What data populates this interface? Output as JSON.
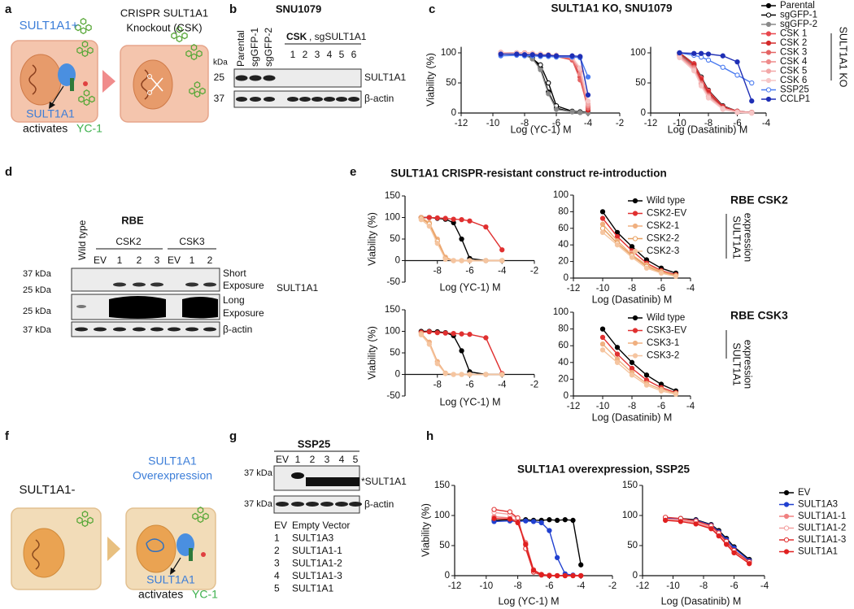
{
  "panel_labels": [
    "a",
    "b",
    "c",
    "d",
    "e",
    "f",
    "g",
    "h"
  ],
  "diagram_a": {
    "label_left": "SULT1A1+",
    "label_right": [
      "CRISPR SULT1A1",
      "Knockout (CSK)"
    ],
    "caption": [
      "SULT1A1",
      "activates",
      "YC-1"
    ]
  },
  "blot_b": {
    "title": "SNU1079",
    "lanes": [
      "Parental",
      "sgGFP-1",
      "sgGFP-2"
    ],
    "group": [
      "CSK",
      ", sgSULT1A1"
    ],
    "group_lanes": [
      "1",
      "2",
      "3",
      "4",
      "5",
      "6"
    ],
    "kda": "kDa",
    "markers": [
      "25",
      "37"
    ],
    "bands": [
      "SULT1A1",
      "β-actin"
    ]
  },
  "blot_d": {
    "title": "RBE",
    "control": "Wild type",
    "groups": [
      "CSK2",
      "CSK3"
    ],
    "lanes": [
      "EV",
      "1",
      "2",
      "3",
      "EV",
      "1",
      "2"
    ],
    "markers": [
      "37 kDa",
      "25 kDa",
      "25 kDa",
      "37 kDa"
    ],
    "exposures": [
      "Short",
      "Exposure",
      "Long",
      "Exposure"
    ],
    "protein": "SULT1A1",
    "loading": "β-actin"
  },
  "diagram_f": {
    "label_left": "SULT1A1-",
    "label_right": [
      "SULT1A1",
      "Overexpression"
    ],
    "caption": [
      "SULT1A1",
      "activates",
      "YC-1"
    ]
  },
  "blot_g": {
    "title": "SSP25",
    "lanes": [
      "EV",
      "1",
      "2",
      "3",
      "4",
      "5"
    ],
    "markers": [
      "37 kDa",
      "37 kDa"
    ],
    "bands": [
      "*SULT1A1",
      "β-actin"
    ],
    "key": [
      [
        "EV",
        "Empty Vector"
      ],
      [
        "1",
        "SULT1A3"
      ],
      [
        "2",
        "SULT1A1-1"
      ],
      [
        "3",
        "SULT1A1-2"
      ],
      [
        "4",
        "SULT1A1-3"
      ],
      [
        "5",
        "SULT1A1"
      ]
    ]
  },
  "chart_data": [
    {
      "type": "line",
      "title": "SULT1A1 KO, SNU1079",
      "x_label": "Log (YC-1) M",
      "y_label": "Viability (%)",
      "xlim": [
        -12,
        -2
      ],
      "xticks": [
        -12,
        -10,
        -8,
        -6,
        -4,
        -2
      ],
      "ylim": [
        0,
        110
      ],
      "yticks": [
        0,
        50,
        100
      ],
      "x": [
        -9.5,
        -8.5,
        -8,
        -7.5,
        -7,
        -6.5,
        -6,
        -5,
        -4.5,
        -4
      ],
      "series": [
        {
          "color": "#000000",
          "values": [
            100,
            100,
            98,
            92,
            75,
            35,
            8,
            2,
            1,
            1
          ]
        },
        {
          "color": "#000000",
          "marker": "open",
          "values": [
            100,
            99,
            97,
            90,
            80,
            50,
            12,
            3,
            2,
            1
          ]
        },
        {
          "color": "#8a8a8a",
          "values": [
            98,
            98,
            96,
            90,
            72,
            32,
            6,
            2,
            1,
            0
          ]
        },
        {
          "color": "#e8474d",
          "values": [
            100,
            100,
            100,
            99,
            98,
            97,
            96,
            92,
            70,
            10
          ]
        },
        {
          "color": "#d42a2a",
          "values": [
            98,
            99,
            98,
            98,
            97,
            96,
            95,
            90,
            60,
            5
          ]
        },
        {
          "color": "#e46464",
          "values": [
            100,
            98,
            99,
            97,
            96,
            95,
            94,
            88,
            55,
            8
          ]
        },
        {
          "color": "#ee8b8b",
          "values": [
            99,
            100,
            98,
            98,
            97,
            96,
            95,
            91,
            65,
            12
          ]
        },
        {
          "color": "#f2a8a8",
          "values": [
            101,
            99,
            100,
            98,
            97,
            97,
            95,
            92,
            72,
            15
          ]
        },
        {
          "color": "#f7c6c6",
          "values": [
            100,
            100,
            99,
            99,
            98,
            97,
            96,
            93,
            75,
            20
          ]
        },
        {
          "color": "#4a7bf0",
          "values": [
            95,
            96,
            95,
            95,
            94,
            94,
            93,
            93,
            92,
            60
          ]
        },
        {
          "color": "#1f2fb5",
          "values": [
            98,
            98,
            97,
            97,
            96,
            96,
            95,
            95,
            94,
            30
          ]
        }
      ]
    },
    {
      "type": "line",
      "x_label": "Log (Dasatinib) M",
      "xlim": [
        -12,
        -4
      ],
      "xticks": [
        -12,
        -10,
        -8,
        -6,
        -4
      ],
      "ylim": [
        0,
        110
      ],
      "yticks": [
        0,
        50,
        100
      ],
      "annotations": [
        "SULT1A1 KO"
      ],
      "x": [
        -10,
        -9,
        -8.5,
        -8,
        -7,
        -6,
        -5
      ],
      "series": [
        {
          "name": "Parental",
          "color": "#000000",
          "values": [
            98,
            80,
            55,
            35,
            10,
            2,
            1
          ]
        },
        {
          "name": "sgGFP-1",
          "color": "#000000",
          "marker": "open",
          "values": [
            100,
            82,
            60,
            38,
            12,
            3,
            1
          ]
        },
        {
          "name": "sgGFP-2",
          "color": "#8a8a8a",
          "values": [
            97,
            78,
            52,
            33,
            9,
            2,
            1
          ]
        },
        {
          "name": "CSK 1",
          "color": "#e8474d",
          "values": [
            99,
            82,
            58,
            37,
            11,
            3,
            1
          ]
        },
        {
          "name": "CSK 2",
          "color": "#d42a2a",
          "values": [
            100,
            80,
            55,
            34,
            10,
            2,
            0
          ]
        },
        {
          "name": "CSK 3",
          "color": "#e46464",
          "values": [
            96,
            76,
            50,
            30,
            8,
            2,
            1
          ]
        },
        {
          "name": "CSK 4",
          "color": "#ee8b8b",
          "values": [
            95,
            74,
            48,
            28,
            7,
            1,
            0
          ]
        },
        {
          "name": "CSK 5",
          "color": "#f2a8a8",
          "values": [
            93,
            72,
            46,
            27,
            8,
            2,
            1
          ]
        },
        {
          "name": "CSK 6",
          "color": "#f7c6c6",
          "values": [
            92,
            70,
            45,
            25,
            6,
            1,
            0
          ]
        },
        {
          "name": "SSP25",
          "color": "#4a7bf0",
          "marker": "open",
          "values": [
            100,
            96,
            93,
            88,
            76,
            63,
            50
          ]
        },
        {
          "name": "CCLP1",
          "color": "#1f2fb5",
          "values": [
            100,
            99,
            99,
            98,
            95,
            85,
            20
          ]
        }
      ]
    },
    {
      "type": "line",
      "title": "SULT1A1 CRISPR-resistant construct re-introduction",
      "x_label": "Log (YC-1) M",
      "y_label": "Viability (%)",
      "xlim": [
        -10,
        -2
      ],
      "xticks": [
        -8,
        -6,
        -4,
        -2
      ],
      "ylim": [
        -50,
        150
      ],
      "yticks": [
        -50,
        0,
        50,
        100,
        150
      ],
      "x": [
        -9,
        -8.5,
        -8,
        -7.5,
        -7,
        -6.5,
        -6,
        -5,
        -4
      ],
      "series": [
        {
          "color": "#000000",
          "values": [
            100,
            100,
            98,
            96,
            88,
            50,
            5,
            0,
            0
          ]
        },
        {
          "color": "#e03030",
          "values": [
            100,
            100,
            99,
            98,
            96,
            95,
            92,
            78,
            25
          ]
        },
        {
          "color": "#f0b080",
          "values": [
            100,
            88,
            50,
            8,
            0,
            0,
            0,
            0,
            0
          ]
        },
        {
          "color": "#e8a060",
          "marker": "open",
          "values": [
            98,
            85,
            45,
            5,
            0,
            0,
            0,
            0,
            0
          ]
        },
        {
          "color": "#f5c5a0",
          "values": [
            95,
            80,
            40,
            3,
            0,
            0,
            0,
            0,
            0
          ]
        }
      ]
    },
    {
      "type": "line",
      "x_label": "Log (Dasatinib) M",
      "xlim": [
        -12,
        -4
      ],
      "xticks": [
        -12,
        -10,
        -8,
        -6,
        -4
      ],
      "ylim": [
        0,
        100
      ],
      "yticks": [
        0,
        20,
        40,
        60,
        80,
        100
      ],
      "annotations": [
        "RBE CSK2",
        "SULT1A1",
        "expression"
      ],
      "x": [
        -10,
        -9,
        -8,
        -7,
        -6,
        -5
      ],
      "series": [
        {
          "name": "Wild type",
          "color": "#000000",
          "values": [
            80,
            55,
            38,
            22,
            12,
            6
          ]
        },
        {
          "name": "CSK2-EV",
          "color": "#e03030",
          "values": [
            72,
            50,
            33,
            18,
            9,
            4
          ]
        },
        {
          "name": "CSK2-1",
          "color": "#f0b080",
          "values": [
            65,
            45,
            28,
            16,
            8,
            3
          ]
        },
        {
          "name": "CSK2-2",
          "color": "#e8a060",
          "marker": "open",
          "values": [
            60,
            42,
            27,
            14,
            7,
            3
          ]
        },
        {
          "name": "CSK2-3",
          "color": "#f5c5a0",
          "values": [
            55,
            40,
            25,
            12,
            6,
            2
          ]
        }
      ]
    },
    {
      "type": "line",
      "x_label": "Log (YC-1) M",
      "y_label": "Viability (%)",
      "xlim": [
        -10,
        -2
      ],
      "xticks": [
        -8,
        -6,
        -4,
        -2
      ],
      "ylim": [
        -50,
        150
      ],
      "yticks": [
        -50,
        0,
        50,
        100,
        150
      ],
      "x": [
        -9,
        -8.5,
        -8,
        -7.5,
        -7,
        -6.5,
        -6,
        -5,
        -4
      ],
      "series": [
        {
          "color": "#000000",
          "values": [
            100,
            100,
            99,
            97,
            90,
            55,
            6,
            0,
            0
          ]
        },
        {
          "color": "#e03030",
          "values": [
            98,
            99,
            97,
            96,
            95,
            94,
            93,
            85,
            2
          ]
        },
        {
          "color": "#f0b080",
          "values": [
            95,
            75,
            30,
            3,
            0,
            0,
            0,
            0,
            0
          ]
        },
        {
          "color": "#f5c5a0",
          "values": [
            92,
            70,
            25,
            2,
            0,
            0,
            0,
            0,
            0
          ]
        }
      ]
    },
    {
      "type": "line",
      "x_label": "Log (Dasatinib) M",
      "xlim": [
        -12,
        -4
      ],
      "xticks": [
        -12,
        -10,
        -8,
        -6,
        -4
      ],
      "ylim": [
        0,
        100
      ],
      "yticks": [
        0,
        20,
        40,
        60,
        80,
        100
      ],
      "annotations": [
        "RBE CSK3",
        "SULT1A1",
        "expression"
      ],
      "x": [
        -10,
        -9,
        -8,
        -7,
        -6,
        -5
      ],
      "series": [
        {
          "name": "Wild type",
          "color": "#000000",
          "values": [
            80,
            58,
            40,
            25,
            14,
            6
          ]
        },
        {
          "name": "CSK3-EV",
          "color": "#e03030",
          "values": [
            70,
            50,
            33,
            19,
            10,
            4
          ]
        },
        {
          "name": "CSK3-1",
          "color": "#f0b080",
          "values": [
            62,
            44,
            28,
            15,
            8,
            3
          ]
        },
        {
          "name": "CSK3-2",
          "color": "#f5c5a0",
          "values": [
            55,
            40,
            25,
            13,
            6,
            2
          ]
        }
      ]
    },
    {
      "type": "line",
      "title": "SULT1A1 overexpression, SSP25",
      "x_label": "Log (YC-1) M",
      "y_label": "Viability (%)",
      "xlim": [
        -12,
        -2
      ],
      "xticks": [
        -12,
        -10,
        -8,
        -6,
        -4,
        -2
      ],
      "ylim": [
        0,
        150
      ],
      "yticks": [
        0,
        50,
        100,
        150
      ],
      "x": [
        -9.5,
        -8.5,
        -8,
        -7.5,
        -7,
        -6.5,
        -6,
        -5.5,
        -5,
        -4.5,
        -4
      ],
      "series": [
        {
          "color": "#000000",
          "values": [
            92,
            93,
            92,
            93,
            92,
            92,
            93,
            92,
            93,
            92,
            18
          ]
        },
        {
          "color": "#2040d0",
          "values": [
            90,
            91,
            90,
            91,
            90,
            88,
            75,
            30,
            3,
            1,
            0
          ]
        },
        {
          "color": "#f08080",
          "values": [
            98,
            96,
            90,
            55,
            10,
            2,
            1,
            0,
            0,
            0,
            0
          ]
        },
        {
          "color": "#f4a0a0",
          "marker": "open",
          "values": [
            105,
            102,
            95,
            50,
            8,
            2,
            0,
            0,
            0,
            0,
            0
          ]
        },
        {
          "color": "#e03030",
          "marker": "open",
          "values": [
            110,
            106,
            96,
            45,
            6,
            1,
            0,
            0,
            0,
            0,
            0
          ]
        },
        {
          "color": "#e02020",
          "values": [
            95,
            94,
            88,
            52,
            9,
            2,
            0,
            0,
            0,
            0,
            0
          ]
        }
      ]
    },
    {
      "type": "line",
      "x_label": "Log (Dasatinib) M",
      "xlim": [
        -12,
        -4
      ],
      "xticks": [
        -12,
        -10,
        -8,
        -6,
        -4
      ],
      "ylim": [
        0,
        150
      ],
      "yticks": [
        0,
        50,
        100,
        150
      ],
      "x": [
        -10.5,
        -9.5,
        -8.5,
        -7.5,
        -7,
        -6.5,
        -6,
        -5
      ],
      "series": [
        {
          "name": "EV",
          "color": "#000000",
          "values": [
            95,
            95,
            93,
            85,
            75,
            62,
            48,
            27
          ]
        },
        {
          "name": "SULT1A3",
          "color": "#2040d0",
          "values": [
            96,
            94,
            92,
            84,
            73,
            60,
            46,
            25
          ]
        },
        {
          "name": "SULT1A1-1",
          "color": "#f08080",
          "values": [
            93,
            92,
            88,
            80,
            68,
            54,
            40,
            22
          ]
        },
        {
          "name": "SULT1A1-2",
          "color": "#f4a0a0",
          "marker": "open",
          "values": [
            94,
            93,
            89,
            81,
            69,
            55,
            41,
            22
          ]
        },
        {
          "name": "SULT1A1-3",
          "color": "#e03030",
          "marker": "open",
          "values": [
            97,
            95,
            91,
            83,
            71,
            57,
            42,
            23
          ]
        },
        {
          "name": "SULT1A1",
          "color": "#e02020",
          "values": [
            92,
            90,
            86,
            78,
            66,
            52,
            38,
            20
          ]
        }
      ]
    }
  ]
}
